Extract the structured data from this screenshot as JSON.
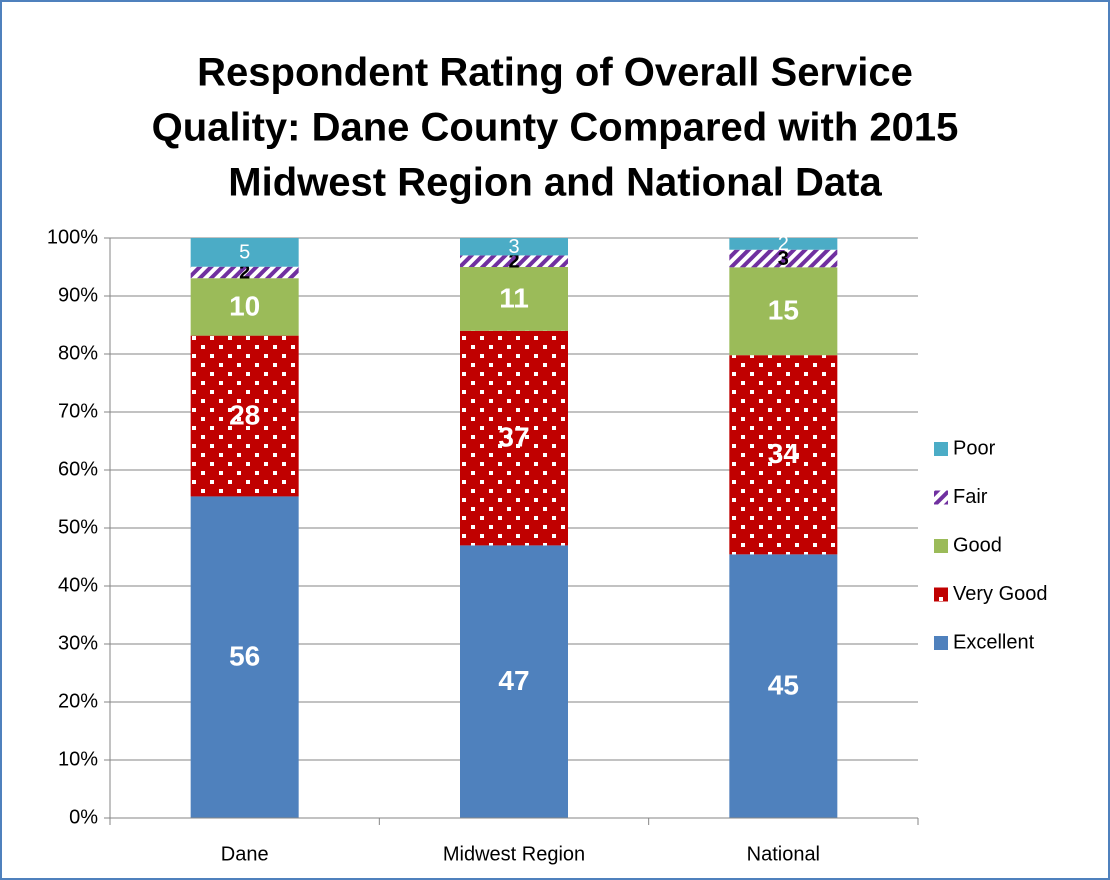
{
  "chart_data": {
    "type": "bar",
    "stacking": "percent",
    "title": [
      "Respondent Rating of Overall Service",
      "Quality:  Dane County Compared with 2015",
      "Midwest Region and National Data"
    ],
    "categories": [
      "Dane",
      "Midwest Region",
      "National"
    ],
    "series": [
      {
        "name": "Excellent",
        "color": "#4f81bd",
        "pattern": "solid",
        "label_color": "#ffffff",
        "values": [
          56,
          47,
          45
        ]
      },
      {
        "name": "Very Good",
        "color": "#c00000",
        "pattern": "dots",
        "label_color": "#ffffff",
        "values": [
          28,
          37,
          34
        ]
      },
      {
        "name": "Good",
        "color": "#9bbb59",
        "pattern": "solid",
        "label_color": "#ffffff",
        "values": [
          10,
          11,
          15
        ]
      },
      {
        "name": "Fair",
        "color": "#7030a0",
        "pattern": "hatch",
        "label_color": "#000000",
        "values": [
          2,
          2,
          3
        ]
      },
      {
        "name": "Poor",
        "color": "#4bacc6",
        "pattern": "solid",
        "label_color": "#ffffff",
        "values": [
          5,
          3,
          2
        ]
      }
    ],
    "ylim": [
      0,
      100
    ],
    "yticks": [
      {
        "value": 0,
        "label": "0%"
      },
      {
        "value": 10,
        "label": "10%"
      },
      {
        "value": 20,
        "label": "20%"
      },
      {
        "value": 30,
        "label": "30%"
      },
      {
        "value": 40,
        "label": "40%"
      },
      {
        "value": 50,
        "label": "50%"
      },
      {
        "value": 60,
        "label": "60%"
      },
      {
        "value": 70,
        "label": "70%"
      },
      {
        "value": 80,
        "label": "80%"
      },
      {
        "value": 90,
        "label": "90%"
      },
      {
        "value": 100,
        "label": "100%"
      }
    ],
    "grid": true,
    "legend": "right"
  }
}
